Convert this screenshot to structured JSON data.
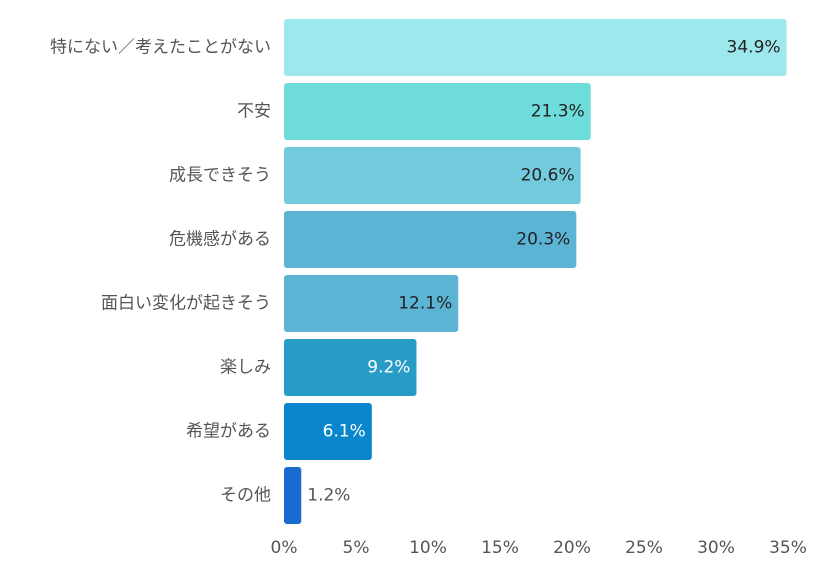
{
  "chart_data": {
    "type": "bar",
    "orientation": "horizontal",
    "title": "",
    "xlabel": "",
    "ylabel": "",
    "categories": [
      "特にない／考えたことがない",
      "不安",
      "成長できそう",
      "危機感がある",
      "面白い変化が起きそう",
      "楽しみ",
      "希望がある",
      "その他"
    ],
    "values": [
      34.9,
      21.3,
      20.6,
      20.3,
      12.1,
      9.2,
      6.1,
      1.2
    ],
    "value_labels": [
      "34.9%",
      "21.3%",
      "20.6%",
      "20.3%",
      "12.1%",
      "9.2%",
      "6.1%",
      "1.2%"
    ],
    "bar_colors": [
      "#9de8ec",
      "#6ddcdb",
      "#72cbdc",
      "#5cb4d5",
      "#5cb4d5",
      "#289cc7",
      "#0a87cc",
      "#1a6bd0"
    ],
    "label_colors": [
      "#222222",
      "#222222",
      "#222222",
      "#222222",
      "#222222",
      "#ffffff",
      "#ffffff",
      "#555555"
    ],
    "label_inside": [
      true,
      true,
      true,
      true,
      true,
      true,
      true,
      false
    ],
    "xlim": [
      0,
      35
    ],
    "xticks": [
      0,
      5,
      10,
      15,
      20,
      25,
      30,
      35
    ],
    "xtick_labels": [
      "0%",
      "5%",
      "10%",
      "15%",
      "20%",
      "25%",
      "30%",
      "35%"
    ],
    "grid": false,
    "legend": "none",
    "category_label_color": "#555555",
    "tick_label_color": "#555555"
  }
}
